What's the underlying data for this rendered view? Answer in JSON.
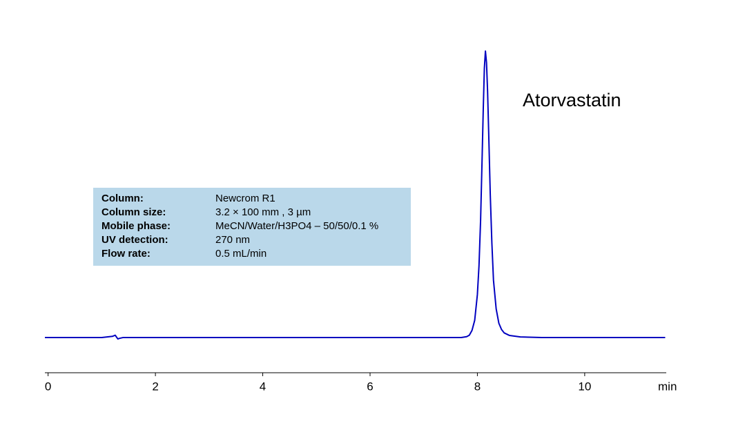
{
  "chart_data": {
    "type": "line",
    "annotation": "Atorvastatin",
    "xlabel": "min",
    "info": [
      {
        "label": "Column:",
        "value": "Newcrom R1"
      },
      {
        "label": "Column size:",
        "value": "3.2 × 100 mm , 3 µm"
      },
      {
        "label": "Mobile phase:",
        "value": "MeCN/Water/H3PO4 – 50/50/0.1 %"
      },
      {
        "label": "UV detection:",
        "value": "270 nm"
      },
      {
        "label": "Flow rate:",
        "value": "0.5 mL/min"
      }
    ],
    "x": [
      -0.06,
      1.0,
      1.2,
      1.25,
      1.3,
      1.33,
      1.4,
      3,
      6,
      7.7,
      7.8,
      7.85,
      7.9,
      7.95,
      8.0,
      8.03,
      8.06,
      8.09,
      8.11,
      8.13,
      8.15,
      8.17,
      8.19,
      8.21,
      8.24,
      8.27,
      8.3,
      8.35,
      8.4,
      8.45,
      8.5,
      8.6,
      8.8,
      9.2,
      11.5
    ],
    "series": [
      {
        "color": "#0000c0",
        "values": [
          0,
          0,
          0.4,
          0.8,
          -0.5,
          -0.3,
          0,
          0,
          0,
          0,
          0.3,
          0.8,
          2.5,
          6,
          15,
          25,
          41,
          64,
          80,
          94,
          100,
          96,
          86,
          72,
          50,
          33,
          20,
          10,
          5,
          2.8,
          1.6,
          0.7,
          0.2,
          0,
          0
        ]
      }
    ],
    "xlim": [
      -0.06,
      11.52
    ],
    "xticks": [
      0,
      2,
      4,
      6,
      8,
      10
    ],
    "ylim": [
      -12.3,
      110
    ],
    "info_color": "#bad8ea"
  }
}
